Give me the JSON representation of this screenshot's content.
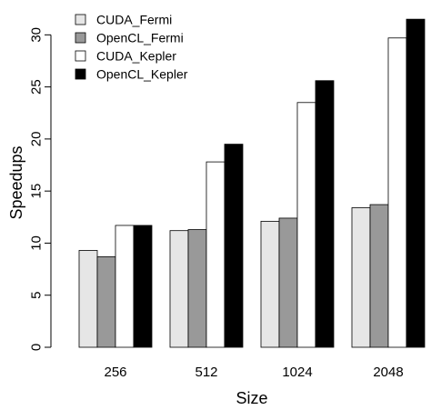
{
  "chart_data": {
    "type": "bar",
    "xlabel": "Size",
    "ylabel": "Speedups",
    "categories": [
      "256",
      "512",
      "1024",
      "2048"
    ],
    "ylim": [
      0,
      31.6
    ],
    "yticks": [
      0,
      5,
      10,
      15,
      20,
      25,
      30
    ],
    "grid": false,
    "legend_position": "top-left",
    "series": [
      {
        "name": "CUDA_Fermi",
        "color": "#e6e6e6",
        "values": [
          9.3,
          11.2,
          12.1,
          13.4
        ]
      },
      {
        "name": "OpenCL_Fermi",
        "color": "#999999",
        "values": [
          8.7,
          11.3,
          12.4,
          13.7
        ]
      },
      {
        "name": "CUDA_Kepler",
        "color": "#ffffff",
        "values": [
          11.7,
          17.8,
          23.5,
          29.7
        ]
      },
      {
        "name": "OpenCL_Kepler",
        "color": "#000000",
        "values": [
          11.7,
          19.5,
          25.6,
          31.5
        ]
      }
    ]
  }
}
